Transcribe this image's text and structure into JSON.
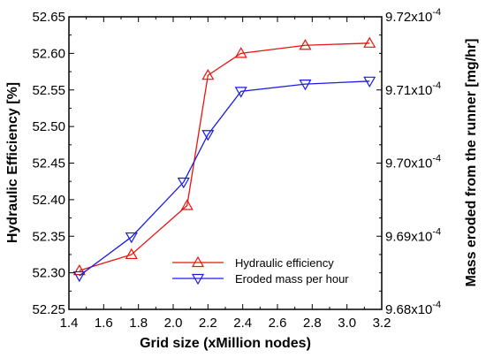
{
  "chart_data": {
    "type": "line",
    "xlabel": "Grid size (xMillion nodes)",
    "ylabel_left": "Hydraulic Efficiency [%]",
    "ylabel_right": "Mass eroded from the runner [mg/hr]",
    "xlim": [
      1.4,
      3.2
    ],
    "ylim_left": [
      52.25,
      52.65
    ],
    "ylim_right": [
      9.68,
      9.72
    ],
    "right_axis_exponent": "-4",
    "x_ticks": [
      "1.4",
      "1.6",
      "1.8",
      "2.0",
      "2.2",
      "2.4",
      "2.6",
      "2.8",
      "3.0",
      "3.2"
    ],
    "y_ticks_left": [
      "52.25",
      "52.30",
      "52.35",
      "52.40",
      "52.45",
      "52.50",
      "52.55",
      "52.60",
      "52.65"
    ],
    "y_ticks_right": [
      "9.68x10",
      "9.69x10",
      "9.70x10",
      "9.71x10",
      "9.72x10"
    ],
    "grid": false,
    "legend_position": "bottom-right",
    "series": [
      {
        "name": "Hydraulic efficiency",
        "axis": "left",
        "color": "#e8140f",
        "marker": "triangle-up",
        "x": [
          1.46,
          1.76,
          2.08,
          2.2,
          2.39,
          2.76,
          3.13
        ],
        "y": [
          52.303,
          52.325,
          52.392,
          52.57,
          52.6,
          52.611,
          52.614
        ]
      },
      {
        "name": "Eroded mass per hour",
        "axis": "right",
        "color": "#1a1ae6",
        "marker": "triangle-down",
        "x": [
          1.46,
          1.76,
          2.06,
          2.2,
          2.39,
          2.76,
          3.13
        ],
        "y": [
          9.6846,
          9.6899,
          9.6974,
          9.7039,
          9.7098,
          9.7108,
          9.7112
        ]
      }
    ]
  }
}
